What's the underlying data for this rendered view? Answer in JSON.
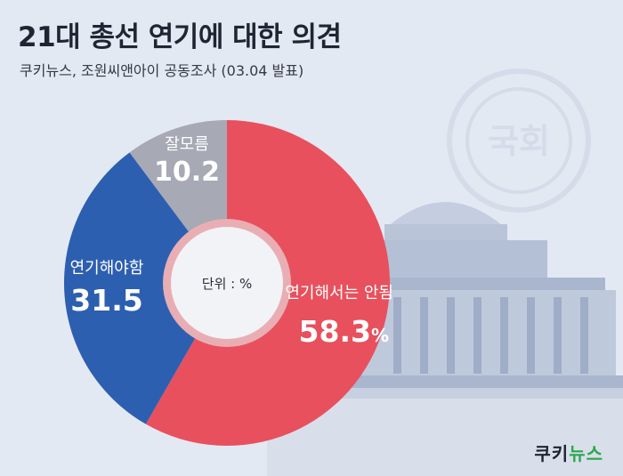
{
  "title": "21대 총선 연기에 대한 의견",
  "subtitle": "쿠키뉴스, 조원씨앤아이 공동조사 (03.04 발표)",
  "brand": {
    "part1": "쿠키",
    "part2": "뉴스"
  },
  "watermark": "국회",
  "colors": {
    "background": "#e3e9f3",
    "red": "#e8505d",
    "blue": "#2d5fb0",
    "gray": "#a7a9b4",
    "brand_green": "#2ba84a"
  },
  "chart_data": {
    "type": "pie",
    "variant": "donut",
    "unit_label": "단위 : %",
    "slices": [
      {
        "label": "연기해서는 안됨",
        "value": 58.3,
        "display": "58.3",
        "unit": "%",
        "color": "#e8505d"
      },
      {
        "label": "연기해야함",
        "value": 31.5,
        "display": "31.5",
        "unit": "",
        "color": "#2d5fb0"
      },
      {
        "label": "잘모름",
        "value": 10.2,
        "display": "10.2",
        "unit": "",
        "color": "#a7a9b4"
      }
    ],
    "start": "top",
    "direction": "clockwise"
  }
}
